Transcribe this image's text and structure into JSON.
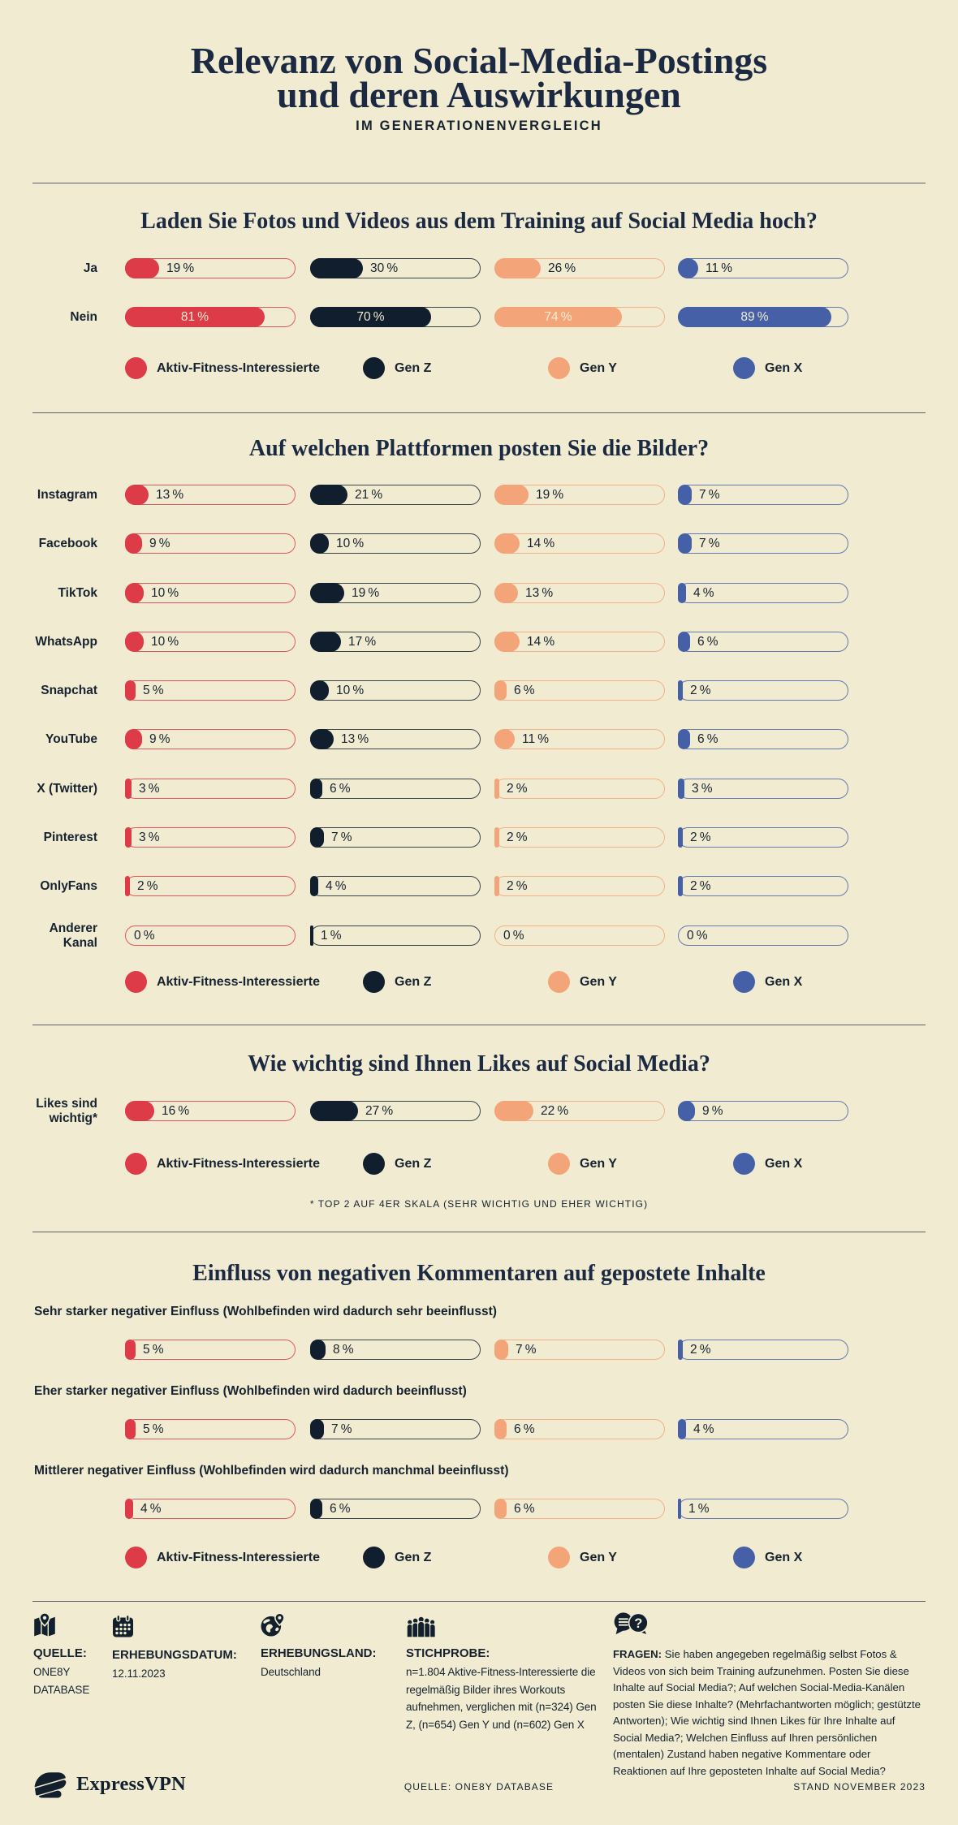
{
  "palette": {
    "background": "#f1ecd1",
    "ink": "#16222f",
    "heading": "#1b2a42",
    "divider": "#5c6168",
    "series_red": "#dc3b47",
    "series_navy": "#101e2d",
    "series_salmon": "#f3a478",
    "series_blue": "#4560a7"
  },
  "header": {
    "title_line1": "Relevanz von Social-Media-Postings",
    "title_line2": "und deren Auswirkungen",
    "subtitle": "IM GENERATIONENVERGLEICH"
  },
  "legend": [
    {
      "label": "Aktiv-Fitness-Interessierte",
      "color": "#dc3b47"
    },
    {
      "label": "Gen Z",
      "color": "#101e2d"
    },
    {
      "label": "Gen Y",
      "color": "#f3a478"
    },
    {
      "label": "Gen X",
      "color": "#4560a7"
    }
  ],
  "unit": "%",
  "chart_data": [
    {
      "id": "upload",
      "type": "bar",
      "title": "Laden Sie Fotos und Videos aus dem Training auf Social Media hoch?",
      "categories": [
        "Ja",
        "Nein"
      ],
      "series": [
        {
          "name": "Aktiv-Fitness-Interessierte",
          "color": "#dc3b47",
          "values": [
            19,
            81
          ]
        },
        {
          "name": "Gen Z",
          "color": "#101e2d",
          "values": [
            30,
            70
          ]
        },
        {
          "name": "Gen Y",
          "color": "#f3a478",
          "values": [
            26,
            74
          ]
        },
        {
          "name": "Gen X",
          "color": "#4560a7",
          "values": [
            11,
            89
          ]
        }
      ],
      "xlim": [
        0,
        100
      ],
      "unit": "%",
      "legend_position": "below"
    },
    {
      "id": "platforms",
      "type": "bar",
      "title": "Auf welchen Plattformen posten Sie die Bilder?",
      "categories": [
        "Instagram",
        "Facebook",
        "TikTok",
        "WhatsApp",
        "Snapchat",
        "YouTube",
        "X (Twitter)",
        "Pinterest",
        "OnlyFans",
        "Anderer\nKanal"
      ],
      "series": [
        {
          "name": "Aktiv-Fitness-Interessierte",
          "color": "#dc3b47",
          "values": [
            13,
            9,
            10,
            10,
            5,
            9,
            3,
            3,
            2,
            0
          ]
        },
        {
          "name": "Gen Z",
          "color": "#101e2d",
          "values": [
            21,
            10,
            19,
            17,
            10,
            13,
            6,
            7,
            4,
            1
          ]
        },
        {
          "name": "Gen Y",
          "color": "#f3a478",
          "values": [
            19,
            14,
            13,
            14,
            6,
            11,
            2,
            2,
            2,
            0
          ]
        },
        {
          "name": "Gen X",
          "color": "#4560a7",
          "values": [
            7,
            7,
            4,
            6,
            2,
            6,
            3,
            2,
            2,
            0
          ]
        }
      ],
      "xlim": [
        0,
        100
      ],
      "unit": "%",
      "legend_position": "below"
    },
    {
      "id": "likes",
      "type": "bar",
      "title": "Wie wichtig sind Ihnen Likes auf Social Media?",
      "categories": [
        "Likes sind\nwichtig*"
      ],
      "series": [
        {
          "name": "Aktiv-Fitness-Interessierte",
          "color": "#dc3b47",
          "values": [
            16
          ]
        },
        {
          "name": "Gen Z",
          "color": "#101e2d",
          "values": [
            27
          ]
        },
        {
          "name": "Gen Y",
          "color": "#f3a478",
          "values": [
            22
          ]
        },
        {
          "name": "Gen X",
          "color": "#4560a7",
          "values": [
            9
          ]
        }
      ],
      "xlim": [
        0,
        100
      ],
      "unit": "%",
      "legend_position": "below",
      "footnote": "* TOP 2 AUF 4ER SKALA (SEHR WICHTIG UND EHER WICHTIG)"
    },
    {
      "id": "comments",
      "type": "bar",
      "title": "Einfluss von negativen Kommentaren auf gepostete Inhalte",
      "categories": [
        "Sehr starker negativer Einfluss (Wohlbefinden wird dadurch sehr beeinflusst)",
        "Eher starker negativer Einfluss (Wohlbefinden wird dadurch beeinflusst)",
        "Mittlerer negativer Einfluss (Wohlbefinden wird dadurch manchmal beeinflusst)"
      ],
      "series": [
        {
          "name": "Aktiv-Fitness-Interessierte",
          "color": "#dc3b47",
          "values": [
            5,
            5,
            4
          ]
        },
        {
          "name": "Gen Z",
          "color": "#101e2d",
          "values": [
            8,
            7,
            6
          ]
        },
        {
          "name": "Gen Y",
          "color": "#f3a478",
          "values": [
            7,
            6,
            6
          ]
        },
        {
          "name": "Gen X",
          "color": "#4560a7",
          "values": [
            2,
            4,
            1
          ]
        }
      ],
      "xlim": [
        0,
        100
      ],
      "unit": "%",
      "legend_position": "below"
    }
  ],
  "footer": {
    "items": [
      {
        "icon": "map-pin-icon",
        "label": "QUELLE:",
        "text": "ONE8Y DATABASE"
      },
      {
        "icon": "calendar-icon",
        "label": "ERHEBUNGSDATUM:",
        "text": "12.11.2023"
      },
      {
        "icon": "globe-pin-icon",
        "label": "ERHEBUNGSLAND:",
        "text": "Deutschland"
      },
      {
        "icon": "crowd-icon",
        "label": "STICHPROBE:",
        "text": "n=1.804 Aktive-Fitness-Interessierte die regelmäßig Bilder ihres Workouts aufnehmen, verglichen mit (n=324) Gen Z, (n=654) Gen Y und (n=602) Gen X"
      },
      {
        "icon": "chat-question-icon",
        "label": "FRAGEN:",
        "text": "Sie haben angegeben regelmäßig selbst Fotos & Videos von sich beim Training aufzunehmen. Posten Sie diese Inhalte auf Social Media?; Auf welchen Social-Media-Kanälen posten Sie diese Inhalte? (Mehrfachantworten möglich; gestützte Antworten); Wie wichtig sind Ihnen Likes für Ihre Inhalte auf Social Media?; Welchen Einfluss auf Ihren persönlichen (mentalen) Zustand haben negative Kommentare oder Reaktionen auf Ihre geposteten Inhalte auf Social Media?"
      }
    ],
    "brand": "ExpressVPN",
    "source_line": "QUELLE: ONE8Y DATABASE",
    "date_line": "STAND NOVEMBER 2023"
  }
}
